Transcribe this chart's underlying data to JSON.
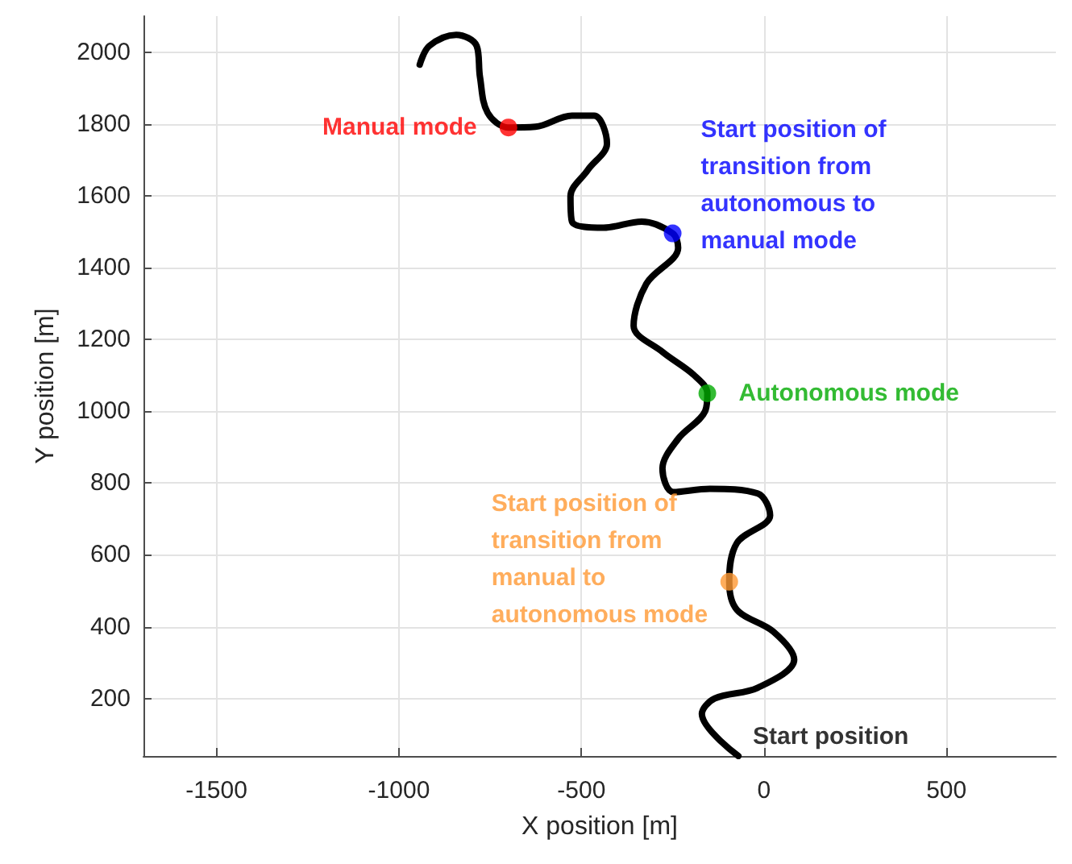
{
  "chart_data": {
    "type": "line",
    "xlabel": "X position [m]",
    "ylabel": "Y position [m]",
    "xlim": [
      -1700,
      800
    ],
    "xticks": [
      -1500,
      -1000,
      -500,
      0,
      500
    ],
    "ylim": [
      40,
      2100
    ],
    "yticks": [
      200,
      400,
      600,
      800,
      1000,
      1200,
      1400,
      1600,
      1800,
      2000
    ],
    "grid": true,
    "legend": false,
    "marker": "none",
    "line_style": "solid",
    "series": [
      {
        "color": "#000000",
        "x": [
          -70,
          -170,
          -135,
          -17,
          83,
          26,
          -74,
          -95,
          -74,
          17,
          -17,
          -148,
          -248,
          -278,
          -235,
          -161,
          -155,
          -191,
          -278,
          -357,
          -322,
          -235,
          -250,
          -335,
          -439,
          -526,
          -530,
          -483,
          -430,
          -465,
          -526,
          -626,
          -700,
          -757,
          -778,
          -787,
          -843,
          -917,
          -943
        ],
        "values": [
          40,
          157,
          200,
          230,
          308,
          386,
          447,
          525,
          633,
          710,
          771,
          784,
          775,
          840,
          923,
          1000,
          1050,
          1100,
          1165,
          1238,
          1355,
          1455,
          1495,
          1528,
          1511,
          1528,
          1598,
          1671,
          1745,
          1823,
          1823,
          1792,
          1790,
          1831,
          1931,
          2017,
          2048,
          2017,
          1965
        ]
      },
      {
        "type": "scatter",
        "marker": "circle",
        "name": "Manual mode",
        "color": "#ff0000",
        "x": [
          -700
        ],
        "values": [
          1790
        ]
      },
      {
        "type": "scatter",
        "marker": "circle",
        "name": "Start position of\ntransition from\nautonomous to\nmanual mode",
        "color": "#0000ff",
        "x": [
          -250
        ],
        "values": [
          1495
        ]
      },
      {
        "type": "scatter",
        "marker": "circle",
        "name": "Autonomous mode",
        "color": "#00aa00",
        "x": [
          -155
        ],
        "values": [
          1050
        ]
      },
      {
        "type": "scatter",
        "marker": "circle",
        "name": "Start position of\ntransition from\nmanual to\nautonomous mode",
        "color": "#ff9933",
        "x": [
          -95
        ],
        "values": [
          525
        ]
      }
    ],
    "annotations": [
      {
        "text": "Start position",
        "x": -70,
        "y": 40
      }
    ]
  }
}
